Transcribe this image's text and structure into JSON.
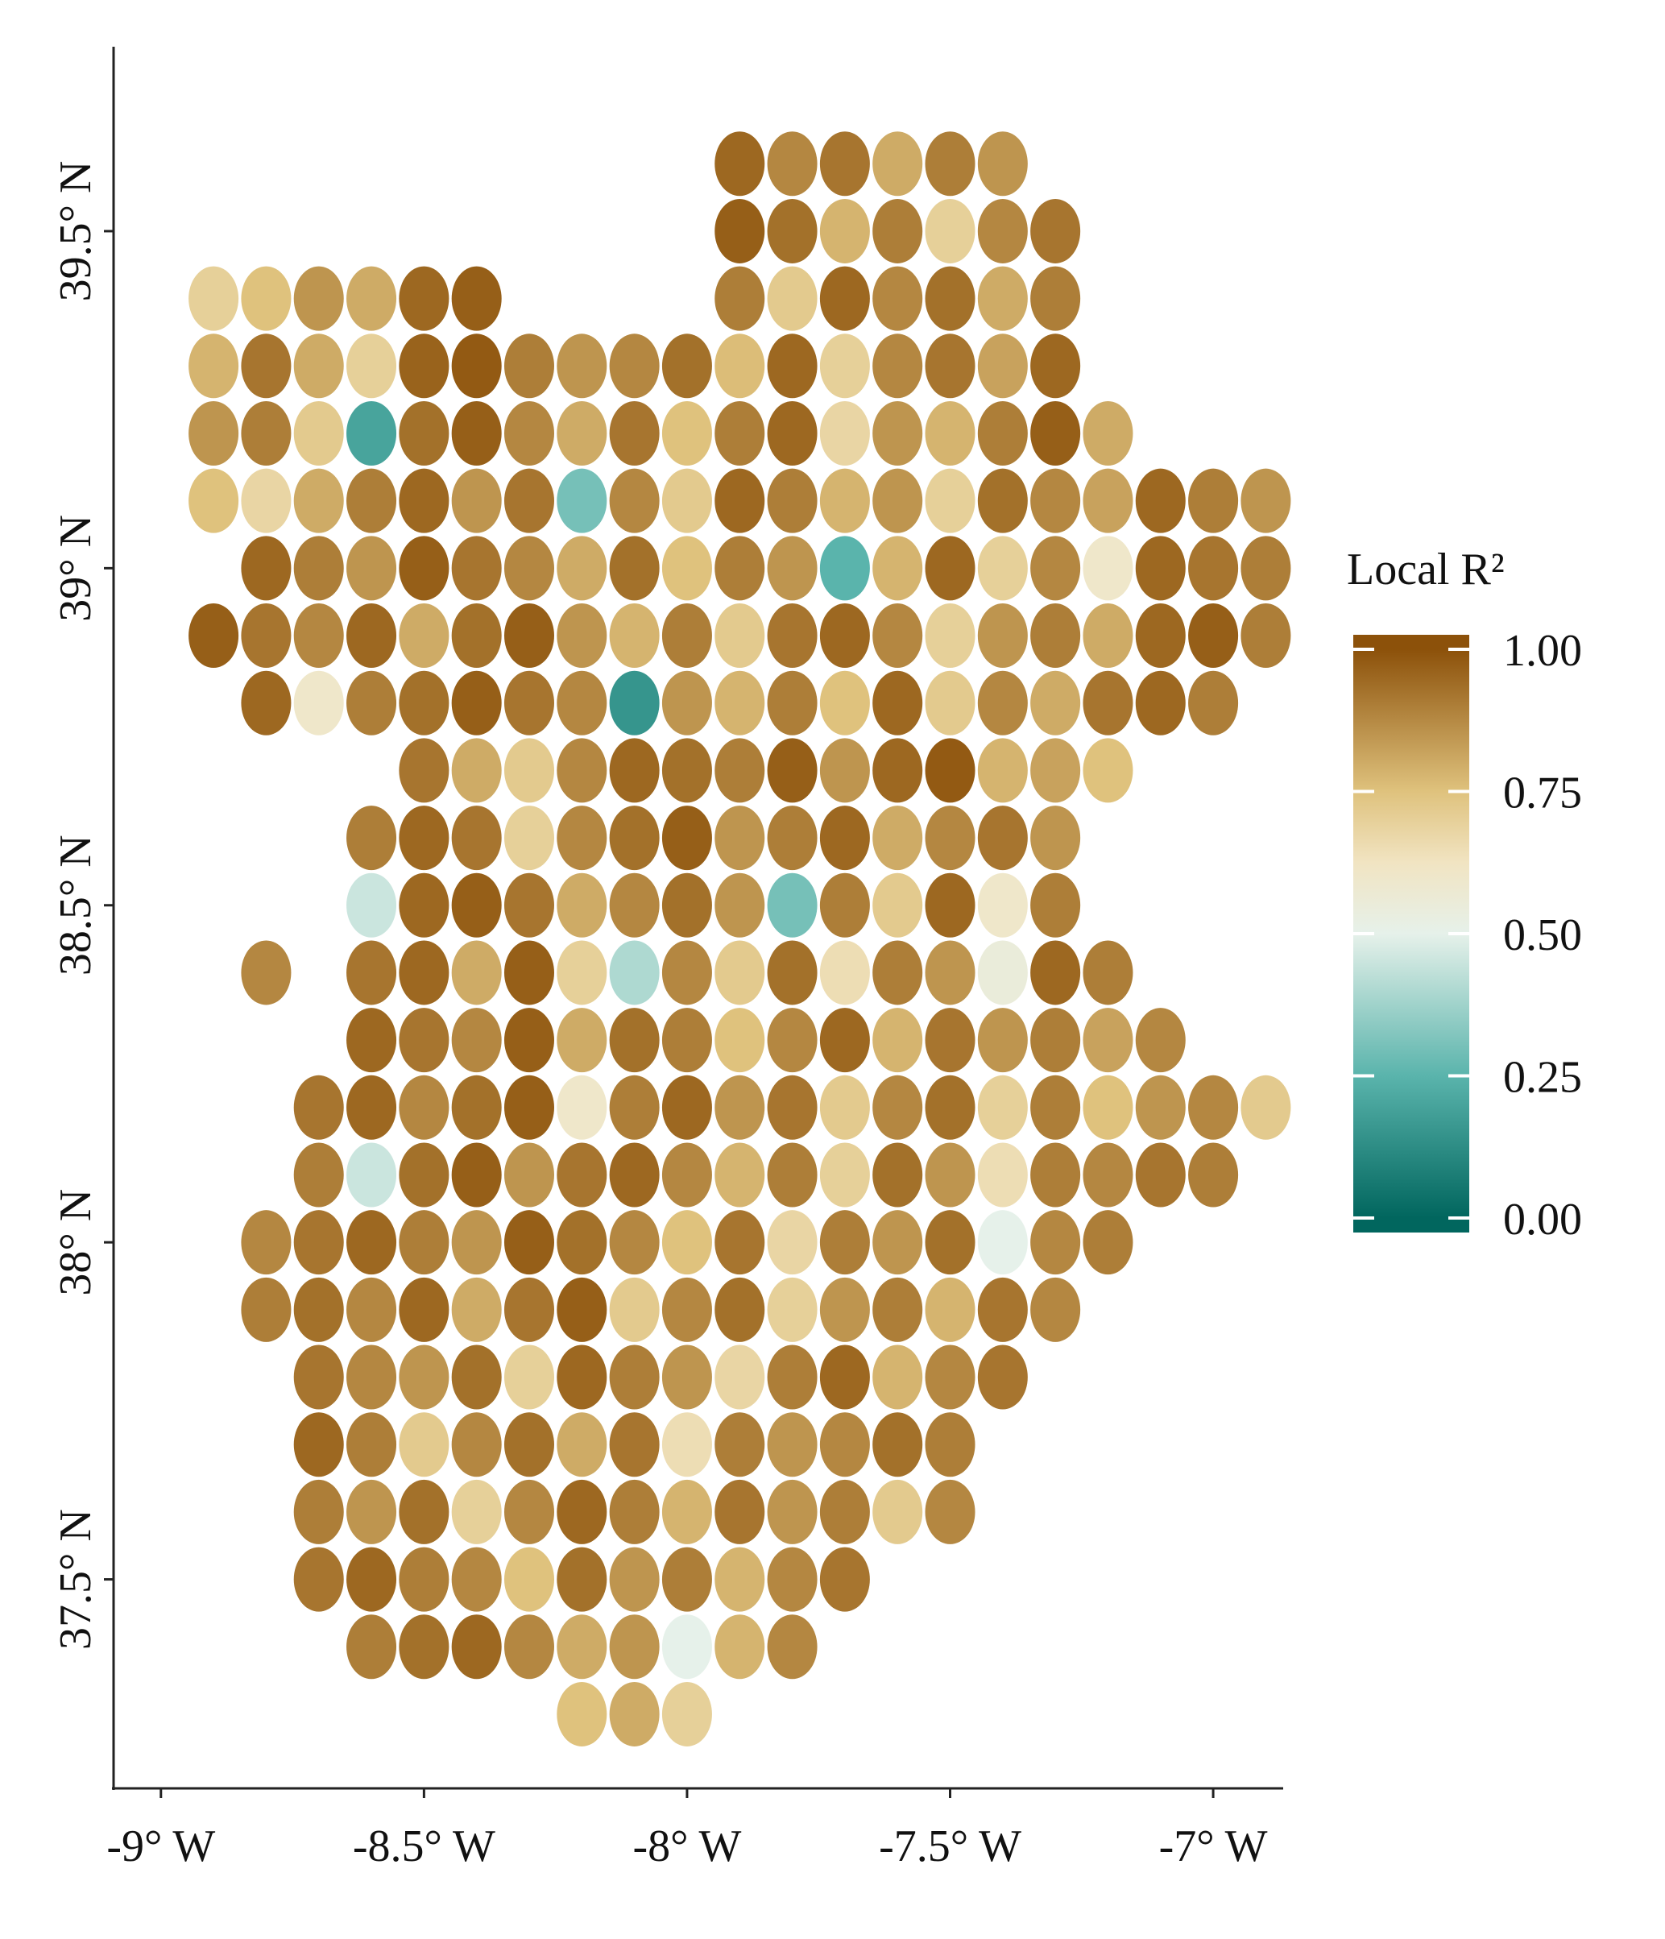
{
  "chart_data": {
    "type": "scatter",
    "xlim": [
      -9.09,
      -6.87
    ],
    "ylim": [
      37.19,
      39.77
    ],
    "xticks": [
      {
        "value": -9,
        "label": "-9° W"
      },
      {
        "value": -8.5,
        "label": "-8.5° W"
      },
      {
        "value": -8,
        "label": "-8° W"
      },
      {
        "value": -7.5,
        "label": "-7.5° W"
      },
      {
        "value": -7,
        "label": "-7° W"
      }
    ],
    "yticks": [
      {
        "value": 37.5,
        "label": "37.5° N"
      },
      {
        "value": 38,
        "label": "38° N"
      },
      {
        "value": 38.5,
        "label": "38.5° N"
      },
      {
        "value": 39,
        "label": "39° N"
      },
      {
        "value": 39.5,
        "label": "39.5° N"
      }
    ],
    "legend": {
      "title": "Local R²",
      "position": "right",
      "ticks": [
        {
          "value": 0,
          "label": "0.00"
        },
        {
          "value": 0.25,
          "label": "0.25"
        },
        {
          "value": 0.5,
          "label": "0.50"
        },
        {
          "value": 0.75,
          "label": "0.75"
        },
        {
          "value": 1,
          "label": "1.00"
        }
      ],
      "colorscale": [
        [
          0,
          "#01665e"
        ],
        [
          0.25,
          "#5ab4ac"
        ],
        [
          0.5,
          "#e6f1ea"
        ],
        [
          0.625,
          "#f1e4c2"
        ],
        [
          0.75,
          "#dfc27d"
        ],
        [
          1,
          "#8c510a"
        ]
      ]
    },
    "rows": [
      {
        "lat": 39.6,
        "lon": [
          -7.9,
          -7.8,
          -7.7,
          -7.6,
          -7.5,
          -7.4
        ],
        "values": [
          0.95,
          0.88,
          0.92,
          0.8,
          0.9,
          0.85
        ]
      },
      {
        "lat": 39.5,
        "lon": [
          -7.9,
          -7.8,
          -7.7,
          -7.6,
          -7.5,
          -7.4,
          -7.3
        ],
        "values": [
          0.97,
          0.93,
          0.78,
          0.9,
          0.7,
          0.88,
          0.92
        ]
      },
      {
        "lat": 39.4,
        "lon": [
          -8.9,
          -8.8,
          -8.7,
          -8.6,
          -8.5,
          -8.4,
          -7.9,
          -7.8,
          -7.7,
          -7.6,
          -7.5,
          -7.4,
          -7.3
        ],
        "values": [
          0.7,
          0.75,
          0.85,
          0.8,
          0.95,
          0.97,
          0.9,
          0.72,
          0.95,
          0.88,
          0.93,
          0.8,
          0.9
        ]
      },
      {
        "lat": 39.3,
        "lon": [
          -8.9,
          -8.8,
          -8.7,
          -8.6,
          -8.5,
          -8.4,
          -8.3,
          -8.2,
          -8.1,
          -8.0,
          -7.9,
          -7.8,
          -7.7,
          -7.6,
          -7.5,
          -7.4,
          -7.3
        ],
        "values": [
          0.78,
          0.92,
          0.8,
          0.7,
          0.96,
          0.98,
          0.9,
          0.85,
          0.88,
          0.93,
          0.76,
          0.95,
          0.7,
          0.88,
          0.92,
          0.82,
          0.95
        ]
      },
      {
        "lat": 39.2,
        "lon": [
          -8.9,
          -8.8,
          -8.7,
          -8.6,
          -8.5,
          -8.4,
          -8.3,
          -8.2,
          -8.1,
          -8.0,
          -7.9,
          -7.8,
          -7.7,
          -7.6,
          -7.5,
          -7.4,
          -7.3,
          -7.2
        ],
        "values": [
          0.85,
          0.9,
          0.72,
          0.2,
          0.93,
          0.97,
          0.88,
          0.8,
          0.92,
          0.75,
          0.9,
          0.95,
          0.68,
          0.85,
          0.78,
          0.9,
          0.97,
          0.8
        ]
      },
      {
        "lat": 39.1,
        "lon": [
          -8.9,
          -8.8,
          -8.7,
          -8.6,
          -8.5,
          -8.4,
          -8.3,
          -8.2,
          -8.1,
          -8.0,
          -7.9,
          -7.8,
          -7.7,
          -7.6,
          -7.5,
          -7.4,
          -7.3,
          -7.2,
          -7.1,
          -7.0,
          -6.9
        ],
        "values": [
          0.75,
          0.68,
          0.8,
          0.9,
          0.95,
          0.85,
          0.92,
          0.3,
          0.88,
          0.72,
          0.95,
          0.9,
          0.78,
          0.85,
          0.7,
          0.93,
          0.88,
          0.82,
          0.95,
          0.9,
          0.85
        ]
      },
      {
        "lat": 39.0,
        "lon": [
          -8.8,
          -8.7,
          -8.6,
          -8.5,
          -8.4,
          -8.3,
          -8.2,
          -8.1,
          -8.0,
          -7.9,
          -7.8,
          -7.7,
          -7.6,
          -7.5,
          -7.4,
          -7.3,
          -7.2,
          -7.1,
          -7.0,
          -6.9
        ],
        "values": [
          0.95,
          0.9,
          0.85,
          0.97,
          0.92,
          0.88,
          0.8,
          0.93,
          0.75,
          0.9,
          0.85,
          0.25,
          0.78,
          0.95,
          0.7,
          0.88,
          0.6,
          0.95,
          0.92,
          0.9
        ]
      },
      {
        "lat": 38.9,
        "lon": [
          -8.9,
          -8.8,
          -8.7,
          -8.6,
          -8.5,
          -8.4,
          -8.3,
          -8.2,
          -8.1,
          -8.0,
          -7.9,
          -7.8,
          -7.7,
          -7.6,
          -7.5,
          -7.4,
          -7.3,
          -7.2,
          -7.1,
          -7.0,
          -6.9
        ],
        "values": [
          0.97,
          0.92,
          0.88,
          0.95,
          0.8,
          0.93,
          0.97,
          0.85,
          0.78,
          0.9,
          0.72,
          0.92,
          0.95,
          0.88,
          0.7,
          0.85,
          0.9,
          0.8,
          0.95,
          0.97,
          0.9
        ]
      },
      {
        "lat": 38.8,
        "lon": [
          -8.8,
          -8.7,
          -8.6,
          -8.5,
          -8.4,
          -8.3,
          -8.2,
          -8.1,
          -8.0,
          -7.9,
          -7.8,
          -7.7,
          -7.6,
          -7.5,
          -7.4,
          -7.3,
          -7.2,
          -7.1,
          -7.0
        ],
        "values": [
          0.95,
          0.6,
          0.9,
          0.93,
          0.97,
          0.92,
          0.88,
          0.15,
          0.85,
          0.78,
          0.9,
          0.75,
          0.95,
          0.72,
          0.88,
          0.8,
          0.92,
          0.95,
          0.9
        ]
      },
      {
        "lat": 38.7,
        "lon": [
          -8.5,
          -8.4,
          -8.3,
          -8.2,
          -8.1,
          -8.0,
          -7.9,
          -7.8,
          -7.7,
          -7.6,
          -7.5,
          -7.4,
          -7.3,
          -7.2
        ],
        "values": [
          0.92,
          0.8,
          0.72,
          0.88,
          0.95,
          0.93,
          0.9,
          0.97,
          0.85,
          0.95,
          0.98,
          0.78,
          0.82,
          0.75
        ]
      },
      {
        "lat": 38.6,
        "lon": [
          -8.6,
          -8.5,
          -8.4,
          -8.3,
          -8.2,
          -8.1,
          -8.0,
          -7.9,
          -7.8,
          -7.7,
          -7.6,
          -7.5,
          -7.4,
          -7.3
        ],
        "values": [
          0.9,
          0.95,
          0.92,
          0.7,
          0.88,
          0.93,
          0.97,
          0.85,
          0.9,
          0.95,
          0.8,
          0.88,
          0.92,
          0.85
        ]
      },
      {
        "lat": 38.5,
        "lon": [
          -8.6,
          -8.5,
          -8.4,
          -8.3,
          -8.2,
          -8.1,
          -8.0,
          -7.9,
          -7.8,
          -7.7,
          -7.6,
          -7.5,
          -7.4,
          -7.3
        ],
        "values": [
          0.45,
          0.95,
          0.97,
          0.92,
          0.8,
          0.88,
          0.93,
          0.85,
          0.3,
          0.9,
          0.72,
          0.95,
          0.6,
          0.9
        ]
      },
      {
        "lat": 38.4,
        "lon": [
          -8.8,
          -8.6,
          -8.5,
          -8.4,
          -8.3,
          -8.2,
          -8.1,
          -8.0,
          -7.9,
          -7.8,
          -7.7,
          -7.6,
          -7.5,
          -7.4,
          -7.3,
          -7.2
        ],
        "values": [
          0.88,
          0.92,
          0.95,
          0.8,
          0.97,
          0.7,
          0.4,
          0.88,
          0.72,
          0.93,
          0.65,
          0.9,
          0.85,
          0.55,
          0.95,
          0.9
        ]
      },
      {
        "lat": 38.3,
        "lon": [
          -8.6,
          -8.5,
          -8.4,
          -8.3,
          -8.2,
          -8.1,
          -8.0,
          -7.9,
          -7.8,
          -7.7,
          -7.6,
          -7.5,
          -7.4,
          -7.3,
          -7.2,
          -7.1
        ],
        "values": [
          0.95,
          0.92,
          0.88,
          0.97,
          0.8,
          0.93,
          0.9,
          0.75,
          0.88,
          0.95,
          0.78,
          0.92,
          0.85,
          0.9,
          0.82,
          0.88
        ]
      },
      {
        "lat": 38.2,
        "lon": [
          -8.7,
          -8.6,
          -8.5,
          -8.4,
          -8.3,
          -8.2,
          -8.1,
          -8.0,
          -7.9,
          -7.8,
          -7.7,
          -7.6,
          -7.5,
          -7.4,
          -7.3,
          -7.2,
          -7.1,
          -7.0,
          -6.9
        ],
        "values": [
          0.92,
          0.95,
          0.88,
          0.93,
          0.97,
          0.6,
          0.9,
          0.95,
          0.85,
          0.92,
          0.72,
          0.88,
          0.93,
          0.7,
          0.9,
          0.75,
          0.85,
          0.88,
          0.72
        ]
      },
      {
        "lat": 38.1,
        "lon": [
          -8.7,
          -8.6,
          -8.5,
          -8.4,
          -8.3,
          -8.2,
          -8.1,
          -8.0,
          -7.9,
          -7.8,
          -7.7,
          -7.6,
          -7.5,
          -7.4,
          -7.3,
          -7.2,
          -7.1,
          -7.0
        ],
        "values": [
          0.9,
          0.45,
          0.93,
          0.97,
          0.85,
          0.92,
          0.95,
          0.88,
          0.78,
          0.9,
          0.7,
          0.93,
          0.85,
          0.65,
          0.9,
          0.88,
          0.92,
          0.9
        ]
      },
      {
        "lat": 38.0,
        "lon": [
          -8.8,
          -8.7,
          -8.6,
          -8.5,
          -8.4,
          -8.3,
          -8.2,
          -8.1,
          -8.0,
          -7.9,
          -7.8,
          -7.7,
          -7.6,
          -7.5,
          -7.4,
          -7.3,
          -7.2
        ],
        "values": [
          0.88,
          0.92,
          0.95,
          0.9,
          0.85,
          0.97,
          0.93,
          0.88,
          0.75,
          0.92,
          0.68,
          0.9,
          0.85,
          0.93,
          0.5,
          0.88,
          0.9
        ]
      },
      {
        "lat": 37.9,
        "lon": [
          -8.8,
          -8.7,
          -8.6,
          -8.5,
          -8.4,
          -8.3,
          -8.2,
          -8.1,
          -8.0,
          -7.9,
          -7.8,
          -7.7,
          -7.6,
          -7.5,
          -7.4,
          -7.3
        ],
        "values": [
          0.9,
          0.93,
          0.88,
          0.95,
          0.8,
          0.92,
          0.97,
          0.72,
          0.88,
          0.93,
          0.7,
          0.85,
          0.9,
          0.78,
          0.92,
          0.88
        ]
      },
      {
        "lat": 37.8,
        "lon": [
          -8.7,
          -8.6,
          -8.5,
          -8.4,
          -8.3,
          -8.2,
          -8.1,
          -8.0,
          -7.9,
          -7.8,
          -7.7,
          -7.6,
          -7.5,
          -7.4
        ],
        "values": [
          0.92,
          0.88,
          0.85,
          0.93,
          0.7,
          0.95,
          0.9,
          0.85,
          0.68,
          0.9,
          0.95,
          0.78,
          0.88,
          0.92
        ]
      },
      {
        "lat": 37.7,
        "lon": [
          -8.7,
          -8.6,
          -8.5,
          -8.4,
          -8.3,
          -8.2,
          -8.1,
          -8.0,
          -7.9,
          -7.8,
          -7.7,
          -7.6,
          -7.5
        ],
        "values": [
          0.95,
          0.9,
          0.72,
          0.88,
          0.93,
          0.8,
          0.92,
          0.65,
          0.9,
          0.85,
          0.88,
          0.93,
          0.9
        ]
      },
      {
        "lat": 37.6,
        "lon": [
          -8.7,
          -8.6,
          -8.5,
          -8.4,
          -8.3,
          -8.2,
          -8.1,
          -8.0,
          -7.9,
          -7.8,
          -7.7,
          -7.6,
          -7.5
        ],
        "values": [
          0.9,
          0.85,
          0.93,
          0.7,
          0.88,
          0.95,
          0.9,
          0.78,
          0.92,
          0.85,
          0.9,
          0.72,
          0.88
        ]
      },
      {
        "lat": 37.5,
        "lon": [
          -8.7,
          -8.6,
          -8.5,
          -8.4,
          -8.3,
          -8.2,
          -8.1,
          -8.0,
          -7.9,
          -7.8,
          -7.7
        ],
        "values": [
          0.92,
          0.95,
          0.9,
          0.88,
          0.75,
          0.93,
          0.85,
          0.9,
          0.78,
          0.88,
          0.92
        ]
      },
      {
        "lat": 37.4,
        "lon": [
          -8.6,
          -8.5,
          -8.4,
          -8.3,
          -8.2,
          -8.1,
          -8.0,
          -7.9,
          -7.8
        ],
        "values": [
          0.9,
          0.93,
          0.95,
          0.88,
          0.8,
          0.85,
          0.5,
          0.78,
          0.88
        ]
      },
      {
        "lat": 37.3,
        "lon": [
          -8.2,
          -8.1,
          -8.0
        ],
        "values": [
          0.75,
          0.8,
          0.7
        ]
      }
    ]
  }
}
